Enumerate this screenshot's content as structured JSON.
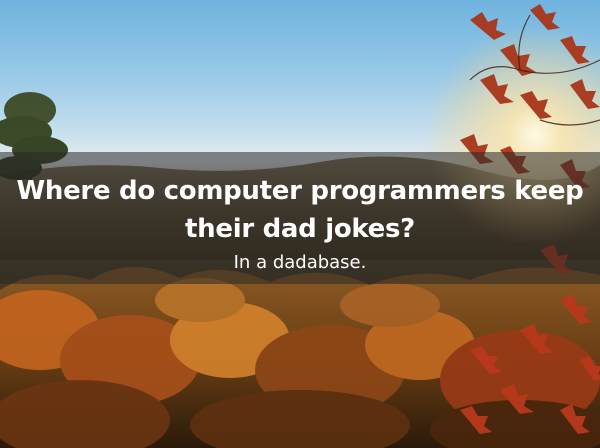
{
  "joke": {
    "question": "Where do computer programmers keep their dad jokes?",
    "answer": "In a dadabase."
  },
  "colors": {
    "sky_top": "#6fb3df",
    "sun_glow": "#fff6d8",
    "foliage_red": "#b23a1a",
    "foliage_orange": "#d07a2a",
    "overlay": "rgba(40,40,40,0.55)",
    "text": "#ffffff"
  }
}
